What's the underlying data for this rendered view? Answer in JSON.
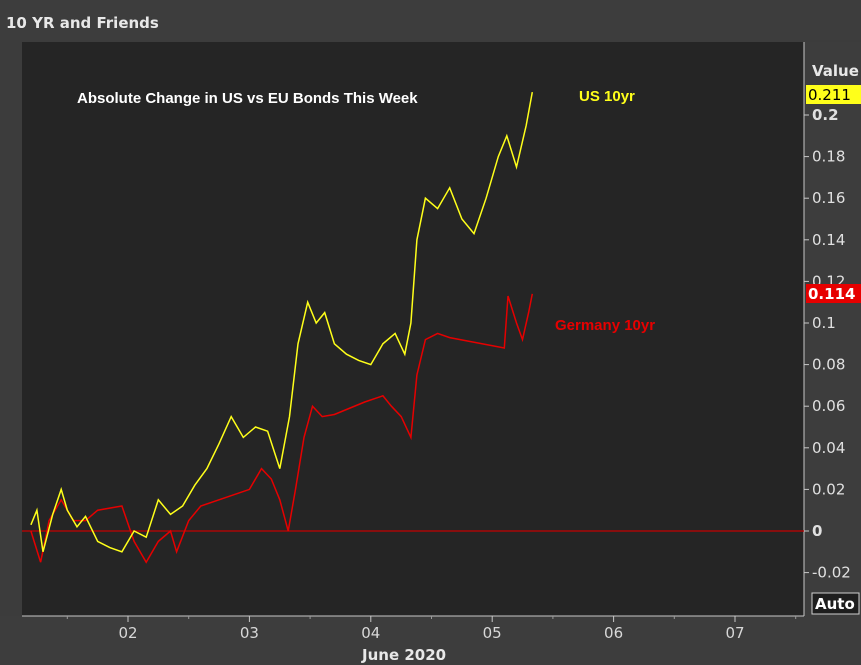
{
  "window": {
    "title": "10 YR and Friends"
  },
  "colors": {
    "us": "#ffff1a",
    "germany": "#e60000",
    "background": "#252525",
    "zero_line": "#c40000"
  },
  "axis": {
    "value_label": "Value",
    "auto_label": "Auto",
    "x_title": "June 2020",
    "x_ticks": [
      "02",
      "03",
      "04",
      "05",
      "06",
      "07"
    ],
    "y_ticks": [
      "0.2",
      "0.18",
      "0.16",
      "0.14",
      "0.12",
      "0.1",
      "0.08",
      "0.06",
      "0.04",
      "0.02",
      "0",
      "-0.02"
    ]
  },
  "chart_data": {
    "type": "line",
    "title": "Absolute Change in US vs EU Bonds This Week",
    "xlabel": "June 2020",
    "ylabel": "Value",
    "ylim": [
      -0.03,
      0.23
    ],
    "xlim": [
      1.2,
      7.6
    ],
    "grid": false,
    "current_values": {
      "us": "0.211",
      "germany": "0.114"
    },
    "series": [
      {
        "name": "US 10yr",
        "color": "#ffff1a",
        "points": [
          [
            1.2,
            0.003
          ],
          [
            1.25,
            0.01
          ],
          [
            1.3,
            -0.01
          ],
          [
            1.38,
            0.008
          ],
          [
            1.45,
            0.02
          ],
          [
            1.5,
            0.01
          ],
          [
            1.58,
            0.002
          ],
          [
            1.65,
            0.007
          ],
          [
            1.75,
            -0.005
          ],
          [
            1.85,
            -0.008
          ],
          [
            1.95,
            -0.01
          ],
          [
            2.05,
            0.0
          ],
          [
            2.15,
            -0.003
          ],
          [
            2.25,
            0.015
          ],
          [
            2.35,
            0.008
          ],
          [
            2.45,
            0.012
          ],
          [
            2.55,
            0.022
          ],
          [
            2.65,
            0.03
          ],
          [
            2.75,
            0.042
          ],
          [
            2.85,
            0.055
          ],
          [
            2.95,
            0.045
          ],
          [
            3.05,
            0.05
          ],
          [
            3.15,
            0.048
          ],
          [
            3.25,
            0.03
          ],
          [
            3.33,
            0.055
          ],
          [
            3.4,
            0.09
          ],
          [
            3.48,
            0.11
          ],
          [
            3.55,
            0.1
          ],
          [
            3.62,
            0.105
          ],
          [
            3.7,
            0.09
          ],
          [
            3.8,
            0.085
          ],
          [
            3.9,
            0.082
          ],
          [
            4.0,
            0.08
          ],
          [
            4.1,
            0.09
          ],
          [
            4.2,
            0.095
          ],
          [
            4.28,
            0.085
          ],
          [
            4.33,
            0.1
          ],
          [
            4.38,
            0.14
          ],
          [
            4.45,
            0.16
          ],
          [
            4.55,
            0.155
          ],
          [
            4.65,
            0.165
          ],
          [
            4.75,
            0.15
          ],
          [
            4.85,
            0.143
          ],
          [
            4.95,
            0.16
          ],
          [
            5.05,
            0.18
          ],
          [
            5.12,
            0.19
          ],
          [
            5.2,
            0.175
          ],
          [
            5.28,
            0.195
          ],
          [
            5.33,
            0.211
          ]
        ]
      },
      {
        "name": "Germany 10yr",
        "color": "#e60000",
        "points": [
          [
            1.2,
            0.0
          ],
          [
            1.28,
            -0.015
          ],
          [
            1.35,
            0.005
          ],
          [
            1.45,
            0.015
          ],
          [
            1.55,
            0.005
          ],
          [
            1.65,
            0.005
          ],
          [
            1.75,
            0.01
          ],
          [
            1.95,
            0.012
          ],
          [
            2.05,
            -0.005
          ],
          [
            2.15,
            -0.015
          ],
          [
            2.25,
            -0.005
          ],
          [
            2.35,
            0.0
          ],
          [
            2.4,
            -0.01
          ],
          [
            2.5,
            0.005
          ],
          [
            2.6,
            0.012
          ],
          [
            3.0,
            0.02
          ],
          [
            3.1,
            0.03
          ],
          [
            3.18,
            0.025
          ],
          [
            3.25,
            0.015
          ],
          [
            3.32,
            0.0
          ],
          [
            3.38,
            0.02
          ],
          [
            3.45,
            0.045
          ],
          [
            3.52,
            0.06
          ],
          [
            3.6,
            0.055
          ],
          [
            3.7,
            0.056
          ],
          [
            3.95,
            0.062
          ],
          [
            4.1,
            0.065
          ],
          [
            4.17,
            0.06
          ],
          [
            4.25,
            0.055
          ],
          [
            4.33,
            0.045
          ],
          [
            4.38,
            0.075
          ],
          [
            4.45,
            0.092
          ],
          [
            4.55,
            0.095
          ],
          [
            4.65,
            0.093
          ],
          [
            5.1,
            0.088
          ],
          [
            5.13,
            0.113
          ],
          [
            5.2,
            0.1
          ],
          [
            5.25,
            0.092
          ],
          [
            5.3,
            0.105
          ],
          [
            5.33,
            0.114
          ]
        ]
      }
    ]
  }
}
